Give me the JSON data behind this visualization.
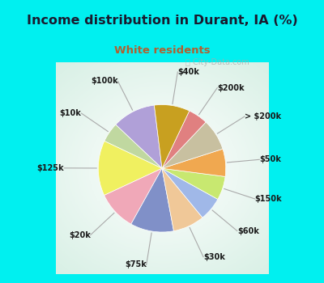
{
  "title": "Income distribution in Durant, IA (%)",
  "subtitle": "White residents",
  "title_color": "#1a1a2e",
  "subtitle_color": "#b06030",
  "bg_cyan": "#00f0f0",
  "watermark": "City-Data.com",
  "labels": [
    "$100k",
    "$10k",
    "$125k",
    "$20k",
    "$75k",
    "$30k",
    "$60k",
    "$150k",
    "$50k",
    "> $200k",
    "$200k",
    "$40k"
  ],
  "values": [
    11,
    5,
    14,
    10,
    11,
    8,
    6,
    6,
    7,
    8,
    5,
    9
  ],
  "colors": [
    "#b0a0d8",
    "#c0d8a0",
    "#f0f060",
    "#f0a8b8",
    "#8090c8",
    "#f0c898",
    "#a0b8e8",
    "#c8e870",
    "#f0a850",
    "#c8c0a0",
    "#e08080",
    "#c8a020"
  ],
  "startangle": 97,
  "figsize": [
    4.0,
    3.5
  ],
  "dpi": 100,
  "title_fontsize": 11.5,
  "subtitle_fontsize": 9.5
}
